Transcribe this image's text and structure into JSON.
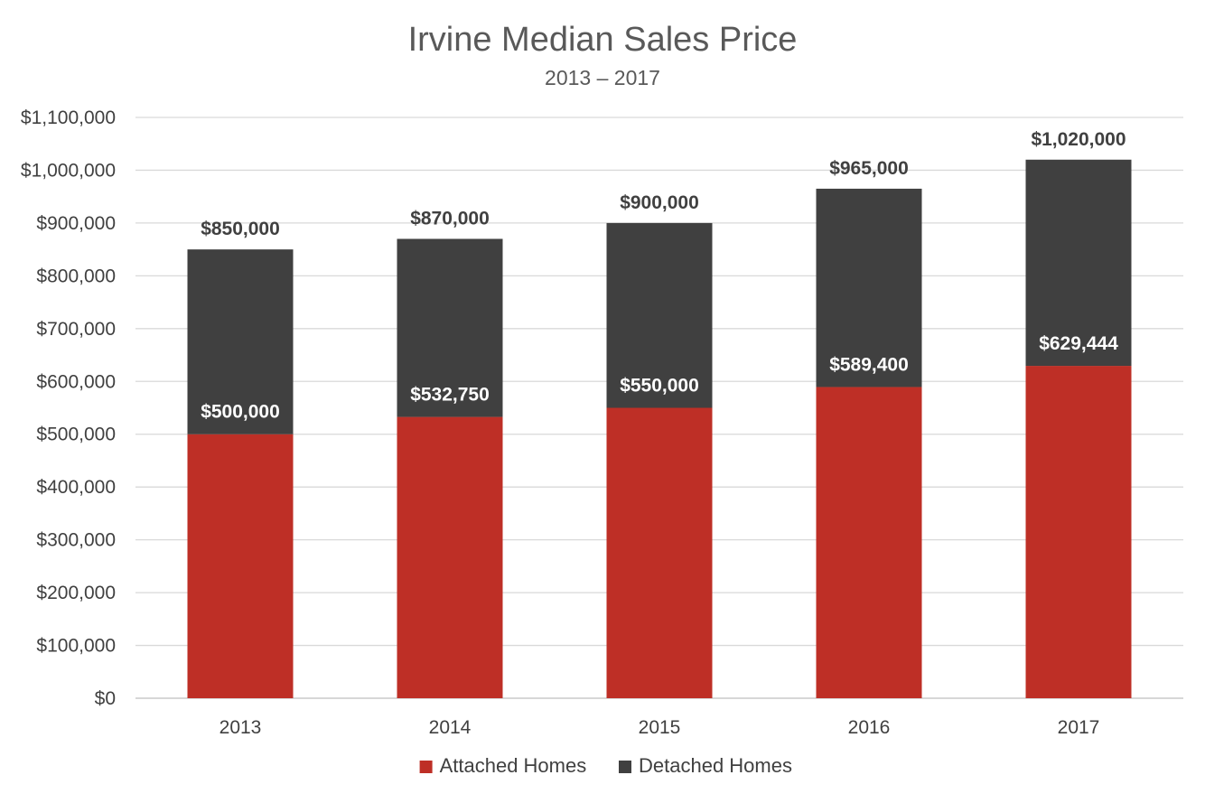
{
  "chart_data": {
    "type": "bar",
    "stacked": true,
    "title": "Irvine Median Sales Price",
    "subtitle": "2013 – 2017",
    "categories": [
      "2013",
      "2014",
      "2015",
      "2016",
      "2017"
    ],
    "series": [
      {
        "name": "Attached Homes",
        "color": "#be2f26",
        "values": [
          500000,
          532750,
          550000,
          589400,
          629444
        ],
        "labels": [
          "$500,000",
          "$532,750",
          "$550,000",
          "$589,400",
          "$629,444"
        ]
      },
      {
        "name": "Detached Homes",
        "color": "#404040",
        "values": [
          350000,
          337250,
          350000,
          375600,
          390556
        ],
        "labels": [
          "$850,000",
          "$870,000",
          "$900,000",
          "$965,000",
          "$1,020,000"
        ]
      }
    ],
    "ylim": [
      0,
      1100000
    ],
    "yticks": [
      "$0",
      "$100,000",
      "$200,000",
      "$300,000",
      "$400,000",
      "$500,000",
      "$600,000",
      "$700,000",
      "$800,000",
      "$900,000",
      "$1,000,000",
      "$1,100,000"
    ],
    "grid": true,
    "legend": "bottom"
  }
}
